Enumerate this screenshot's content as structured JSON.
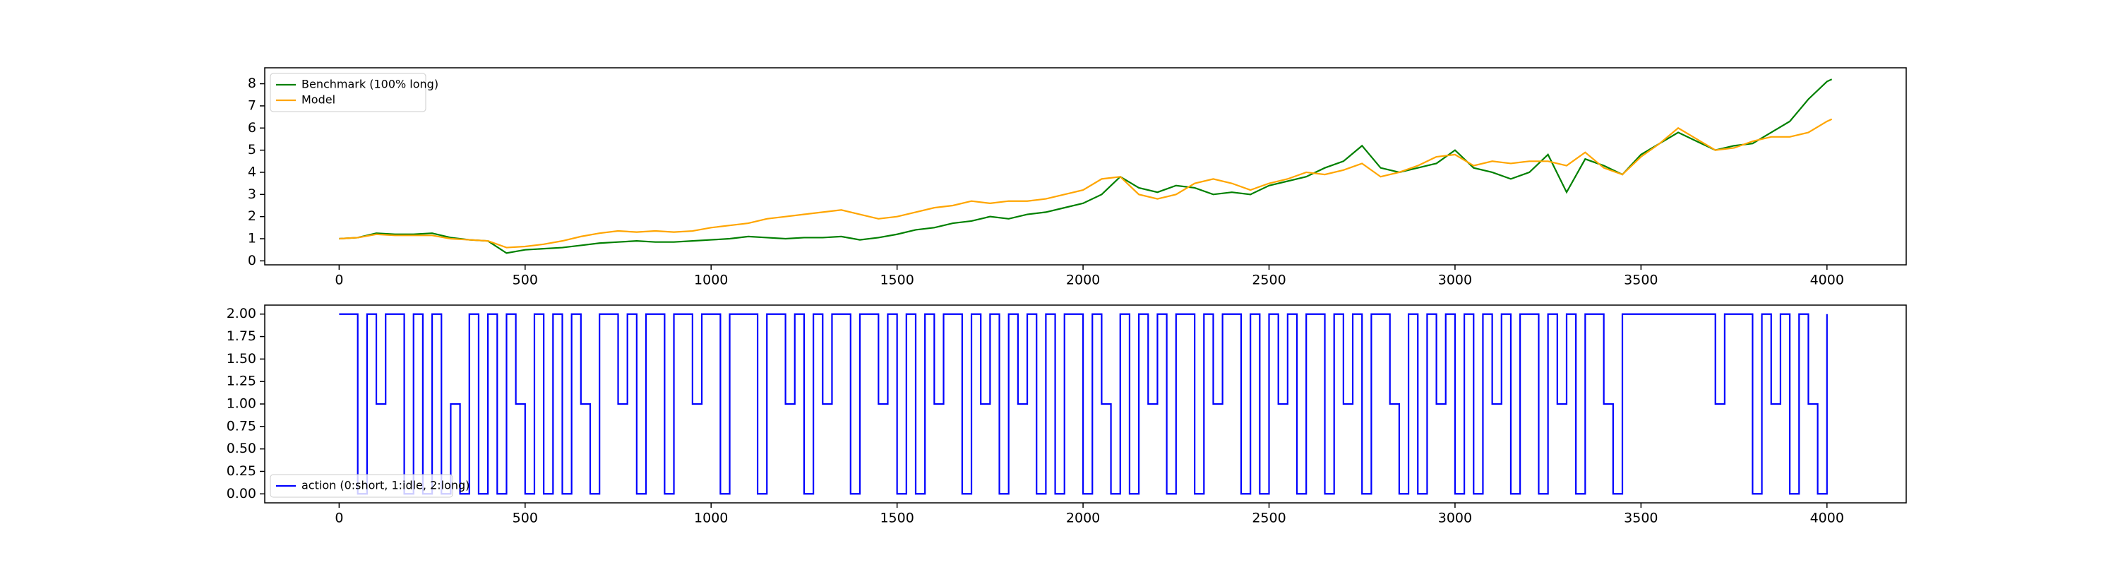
{
  "chart_data": [
    {
      "type": "line",
      "xlim": [
        -200,
        4213
      ],
      "xticks": [
        0,
        500,
        1000,
        1500,
        2000,
        2500,
        3000,
        3500,
        4000
      ],
      "ylim": [
        -0.18,
        8.72
      ],
      "yticks": [
        0,
        1,
        2,
        3,
        4,
        5,
        6,
        7,
        8
      ],
      "legend": "upper left",
      "x": [
        0,
        50,
        100,
        150,
        200,
        250,
        300,
        350,
        400,
        450,
        500,
        550,
        600,
        650,
        700,
        750,
        800,
        850,
        900,
        950,
        1000,
        1050,
        1100,
        1150,
        1200,
        1250,
        1300,
        1350,
        1400,
        1450,
        1500,
        1550,
        1600,
        1650,
        1700,
        1750,
        1800,
        1850,
        1900,
        1950,
        2000,
        2050,
        2100,
        2150,
        2200,
        2250,
        2300,
        2350,
        2400,
        2450,
        2500,
        2550,
        2600,
        2650,
        2700,
        2750,
        2800,
        2850,
        2900,
        2950,
        3000,
        3050,
        3100,
        3150,
        3200,
        3250,
        3300,
        3350,
        3400,
        3450,
        3500,
        3550,
        3600,
        3650,
        3700,
        3750,
        3800,
        3850,
        3900,
        3950,
        4000,
        4013
      ],
      "series": [
        {
          "name": "Benchmark (100% long)",
          "color": "#008000",
          "values": [
            1.0,
            1.05,
            1.25,
            1.2,
            1.2,
            1.25,
            1.05,
            0.95,
            0.9,
            0.35,
            0.5,
            0.55,
            0.6,
            0.7,
            0.8,
            0.85,
            0.9,
            0.85,
            0.85,
            0.9,
            0.95,
            1.0,
            1.1,
            1.05,
            1.0,
            1.05,
            1.05,
            1.1,
            0.95,
            1.05,
            1.2,
            1.4,
            1.5,
            1.7,
            1.8,
            2.0,
            1.9,
            2.1,
            2.2,
            2.4,
            2.6,
            3.0,
            3.8,
            3.3,
            3.1,
            3.4,
            3.3,
            3.0,
            3.1,
            3.0,
            3.4,
            3.6,
            3.8,
            4.2,
            4.5,
            5.2,
            4.2,
            4.0,
            4.2,
            4.4,
            5.0,
            4.2,
            4.0,
            3.7,
            4.0,
            4.8,
            3.1,
            4.6,
            4.3,
            3.9,
            4.8,
            5.3,
            5.8,
            5.4,
            5.0,
            5.2,
            5.3,
            5.8,
            6.3,
            7.3,
            8.1,
            8.2
          ]
        },
        {
          "name": "Model",
          "color": "#ffa500",
          "values": [
            1.0,
            1.05,
            1.2,
            1.15,
            1.15,
            1.15,
            1.0,
            0.95,
            0.9,
            0.6,
            0.65,
            0.75,
            0.9,
            1.1,
            1.25,
            1.35,
            1.3,
            1.35,
            1.3,
            1.35,
            1.5,
            1.6,
            1.7,
            1.9,
            2.0,
            2.1,
            2.2,
            2.3,
            2.1,
            1.9,
            2.0,
            2.2,
            2.4,
            2.5,
            2.7,
            2.6,
            2.7,
            2.7,
            2.8,
            3.0,
            3.2,
            3.7,
            3.8,
            3.0,
            2.8,
            3.0,
            3.5,
            3.7,
            3.5,
            3.2,
            3.5,
            3.7,
            4.0,
            3.9,
            4.1,
            4.4,
            3.8,
            4.0,
            4.3,
            4.7,
            4.8,
            4.3,
            4.5,
            4.4,
            4.5,
            4.5,
            4.3,
            4.9,
            4.2,
            3.9,
            4.7,
            5.3,
            6.0,
            5.5,
            5.0,
            5.1,
            5.4,
            5.6,
            5.6,
            5.8,
            6.3,
            6.4
          ]
        }
      ]
    },
    {
      "type": "step",
      "xlim": [
        -200,
        4213
      ],
      "xticks": [
        0,
        500,
        1000,
        1500,
        2000,
        2500,
        3000,
        3500,
        4000
      ],
      "ylim": [
        -0.1,
        2.1
      ],
      "yticks": [
        {
          "value": 0,
          "label": "0.00"
        },
        {
          "value": 0.25,
          "label": "0.25"
        },
        {
          "value": 0.5,
          "label": "0.50"
        },
        {
          "value": 0.75,
          "label": "0.75"
        },
        {
          "value": 1,
          "label": "1.00"
        },
        {
          "value": 1.25,
          "label": "1.25"
        },
        {
          "value": 1.5,
          "label": "1.50"
        },
        {
          "value": 1.75,
          "label": "1.75"
        },
        {
          "value": 2,
          "label": "2.00"
        }
      ],
      "legend": "lower left",
      "x": [
        0,
        25,
        50,
        75,
        100,
        125,
        150,
        175,
        200,
        225,
        250,
        275,
        300,
        325,
        350,
        375,
        400,
        425,
        450,
        475,
        500,
        525,
        550,
        575,
        600,
        625,
        650,
        675,
        700,
        725,
        750,
        775,
        800,
        825,
        850,
        875,
        900,
        925,
        950,
        975,
        1000,
        1025,
        1050,
        1075,
        1100,
        1125,
        1150,
        1175,
        1200,
        1225,
        1250,
        1275,
        1300,
        1325,
        1350,
        1375,
        1400,
        1425,
        1450,
        1475,
        1500,
        1525,
        1550,
        1575,
        1600,
        1625,
        1650,
        1675,
        1700,
        1725,
        1750,
        1775,
        1800,
        1825,
        1850,
        1875,
        1900,
        1925,
        1950,
        1975,
        2000,
        2025,
        2050,
        2075,
        2100,
        2125,
        2150,
        2175,
        2200,
        2225,
        2250,
        2275,
        2300,
        2325,
        2350,
        2375,
        2400,
        2425,
        2450,
        2475,
        2500,
        2525,
        2550,
        2575,
        2600,
        2625,
        2650,
        2675,
        2700,
        2725,
        2750,
        2775,
        2800,
        2825,
        2850,
        2875,
        2900,
        2925,
        2950,
        2975,
        3000,
        3025,
        3050,
        3075,
        3100,
        3125,
        3150,
        3175,
        3200,
        3225,
        3250,
        3275,
        3300,
        3325,
        3350,
        3375,
        3400,
        3425,
        3450,
        3475,
        3500,
        3525,
        3550,
        3575,
        3600,
        3625,
        3650,
        3675,
        3700,
        3725,
        3750,
        3775,
        3800,
        3825,
        3850,
        3875,
        3900,
        3925,
        3950,
        3975,
        4000
      ],
      "series": [
        {
          "name": "action (0:short, 1:idle, 2:long)",
          "color": "#0000ff",
          "values": [
            2,
            2,
            0,
            2,
            1,
            2,
            2,
            0,
            2,
            0,
            2,
            0,
            1,
            0,
            2,
            0,
            2,
            0,
            2,
            1,
            0,
            2,
            0,
            2,
            0,
            2,
            1,
            0,
            2,
            2,
            1,
            2,
            0,
            2,
            2,
            0,
            2,
            2,
            1,
            2,
            2,
            0,
            2,
            2,
            2,
            0,
            2,
            2,
            1,
            2,
            0,
            2,
            1,
            2,
            2,
            0,
            2,
            2,
            1,
            2,
            0,
            2,
            0,
            2,
            1,
            2,
            2,
            0,
            2,
            1,
            2,
            0,
            2,
            1,
            2,
            0,
            2,
            0,
            2,
            2,
            0,
            2,
            1,
            0,
            2,
            0,
            2,
            1,
            2,
            0,
            2,
            2,
            0,
            2,
            1,
            2,
            2,
            0,
            2,
            0,
            2,
            1,
            2,
            0,
            2,
            2,
            0,
            2,
            1,
            2,
            0,
            2,
            2,
            1,
            0,
            2,
            0,
            2,
            1,
            2,
            0,
            2,
            0,
            2,
            1,
            2,
            0,
            2,
            2,
            0,
            2,
            1,
            2,
            0,
            2,
            2,
            1,
            0,
            2,
            2,
            2,
            2,
            2,
            2,
            2,
            2,
            2,
            2,
            1,
            2,
            2,
            2,
            0,
            2,
            1,
            2,
            0,
            2,
            1,
            0,
            2
          ]
        }
      ]
    }
  ]
}
